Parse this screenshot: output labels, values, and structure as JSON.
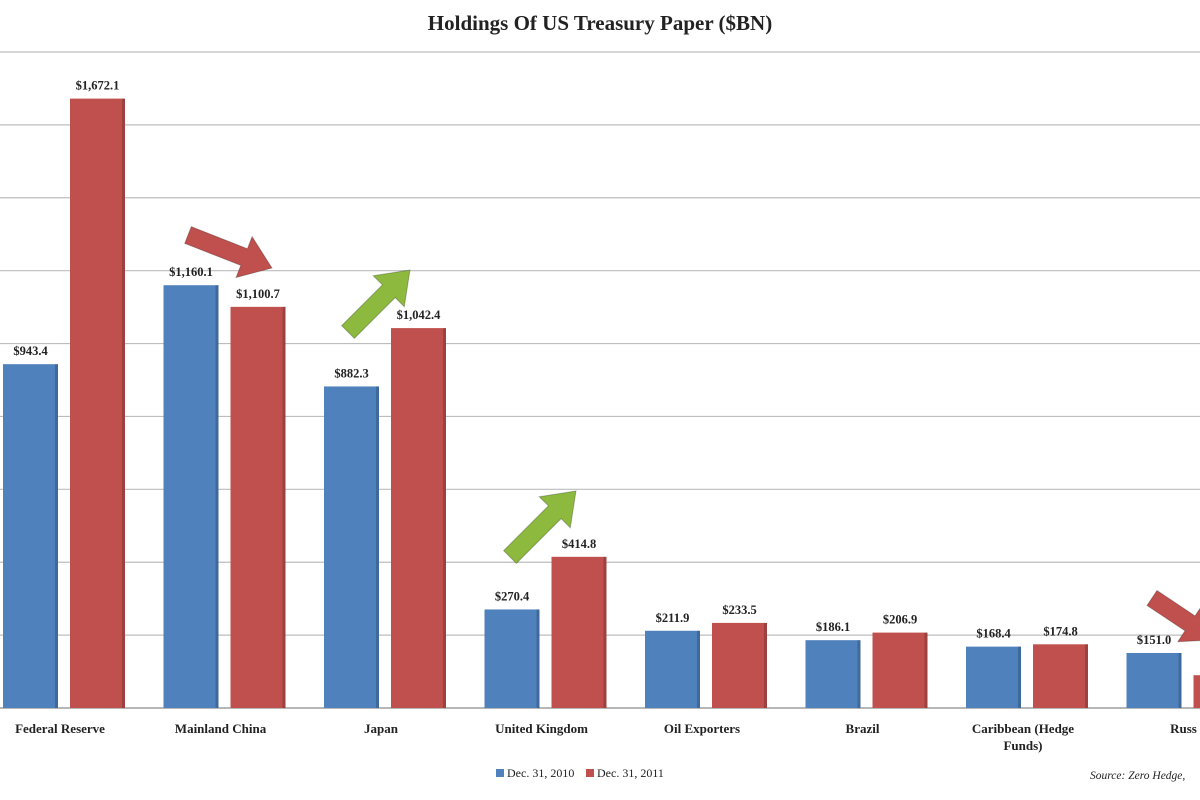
{
  "chart_data": {
    "type": "bar",
    "title": "Holdings Of US Treasury Paper ($BN)",
    "categories": [
      "Federal Reserve",
      "Mainland China",
      "Japan",
      "United Kingdom",
      "Oil Exporters",
      "Brazil",
      "Caribbean (Hedge Funds)",
      "Russia"
    ],
    "category_lines": [
      [
        "Federal Reserve"
      ],
      [
        "Mainland China"
      ],
      [
        "Japan"
      ],
      [
        "United Kingdom"
      ],
      [
        "Oil Exporters"
      ],
      [
        "Brazil"
      ],
      [
        "Caribbean (Hedge",
        "Funds)"
      ],
      [
        "Russ"
      ]
    ],
    "series": [
      {
        "name": "Dec. 31, 2010",
        "color": "#4f81bd",
        "values": [
          943.4,
          1160.1,
          882.3,
          270.4,
          211.9,
          186.1,
          168.4,
          151.0
        ],
        "labels": [
          "$943.4",
          "$1,160.1",
          "$882.3",
          "$270.4",
          "$211.9",
          "$186.1",
          "$168.4",
          "$151.0"
        ]
      },
      {
        "name": "Dec. 31, 2011",
        "color": "#c0504d",
        "values": [
          1672.1,
          1100.7,
          1042.4,
          414.8,
          233.5,
          206.9,
          174.8,
          90
        ],
        "labels": [
          "$1,672.1",
          "$1,100.7",
          "$1,042.4",
          "$414.8",
          "$233.5",
          "$206.9",
          "$174.8",
          ""
        ]
      }
    ],
    "ylim": [
      0,
      1800
    ],
    "y_gridline_step": 200,
    "y_tick_labels_shown": false,
    "grid": true,
    "legend_position": "bottom-center",
    "source": "Source: Zero Hedge,",
    "annotations": [
      {
        "type": "arrow",
        "direction": "down",
        "color": "#c0504d",
        "category": "Mainland China"
      },
      {
        "type": "arrow",
        "direction": "up",
        "color": "#8db93e",
        "category": "Japan"
      },
      {
        "type": "arrow",
        "direction": "up",
        "color": "#8db93e",
        "category": "United Kingdom"
      },
      {
        "type": "arrow",
        "direction": "down",
        "color": "#c0504d",
        "category": "Russia"
      }
    ]
  }
}
